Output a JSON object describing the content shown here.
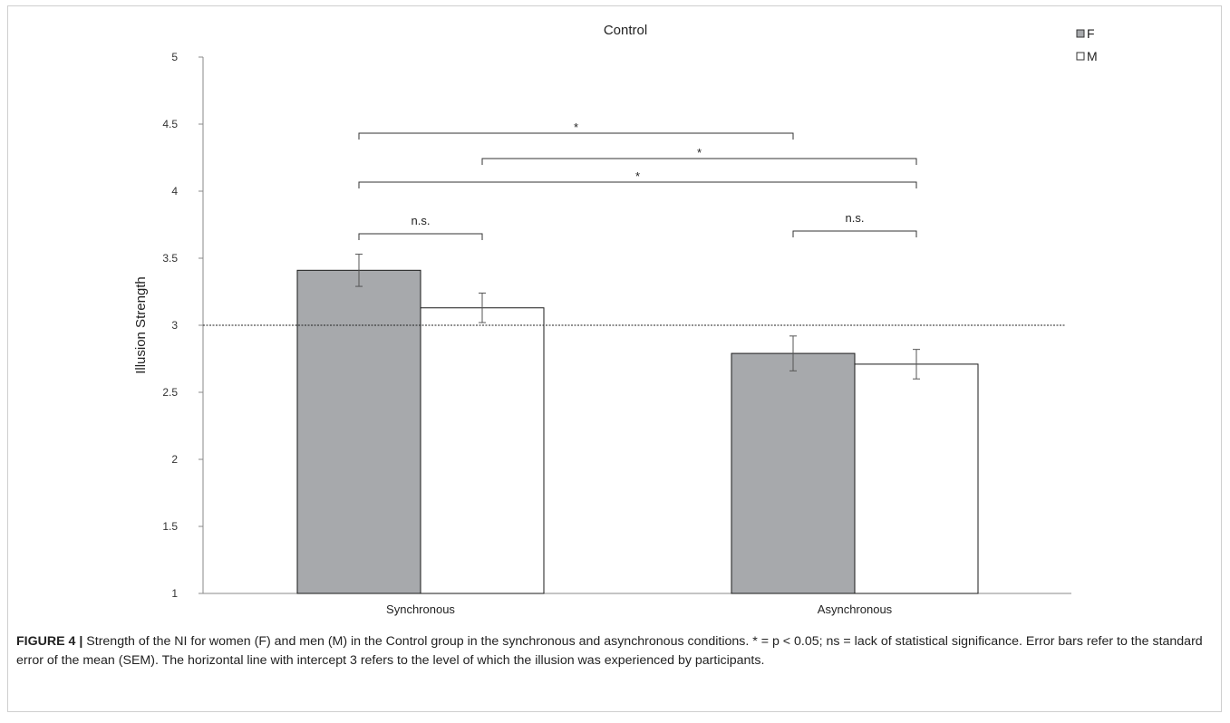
{
  "chart_data": {
    "type": "bar",
    "title": "Control",
    "ylabel": "Illusion Strength",
    "xlabel": "",
    "ylim": [
      1,
      5
    ],
    "yticks": [
      1,
      1.5,
      2,
      2.5,
      3,
      3.5,
      4,
      4.5,
      5
    ],
    "categories": [
      "Synchronous",
      "Asynchronous"
    ],
    "series": [
      {
        "name": "F",
        "values": [
          3.41,
          2.79
        ],
        "errors": [
          0.12,
          0.13
        ],
        "color": "#a7a9ac"
      },
      {
        "name": "M",
        "values": [
          3.13,
          2.71
        ],
        "errors": [
          0.11,
          0.11
        ],
        "color": "#ffffff"
      }
    ],
    "reference_line": {
      "y": 3,
      "style": "dotted"
    },
    "legend_position": "top-right",
    "significance": [
      {
        "from": "Synchronous F",
        "to": "Asynchronous F",
        "label": "*"
      },
      {
        "from": "Synchronous M",
        "to": "Asynchronous M",
        "label": "*"
      },
      {
        "from": "Synchronous F",
        "to": "Asynchronous M",
        "label": "*"
      },
      {
        "from": "Synchronous F",
        "to": "Synchronous M",
        "label": "n.s."
      },
      {
        "from": "Asynchronous F",
        "to": "Asynchronous M",
        "label": "n.s."
      }
    ]
  },
  "caption": {
    "label": "FIGURE 4 |",
    "text": " Strength of the NI for women (F) and men (M) in the Control group in the synchronous and asynchronous conditions. * = p < 0.05; ns = lack of statistical significance. Error bars refer to the standard error of the mean (SEM). The horizontal line with intercept 3 refers to the level of which the illusion was experienced by participants."
  }
}
